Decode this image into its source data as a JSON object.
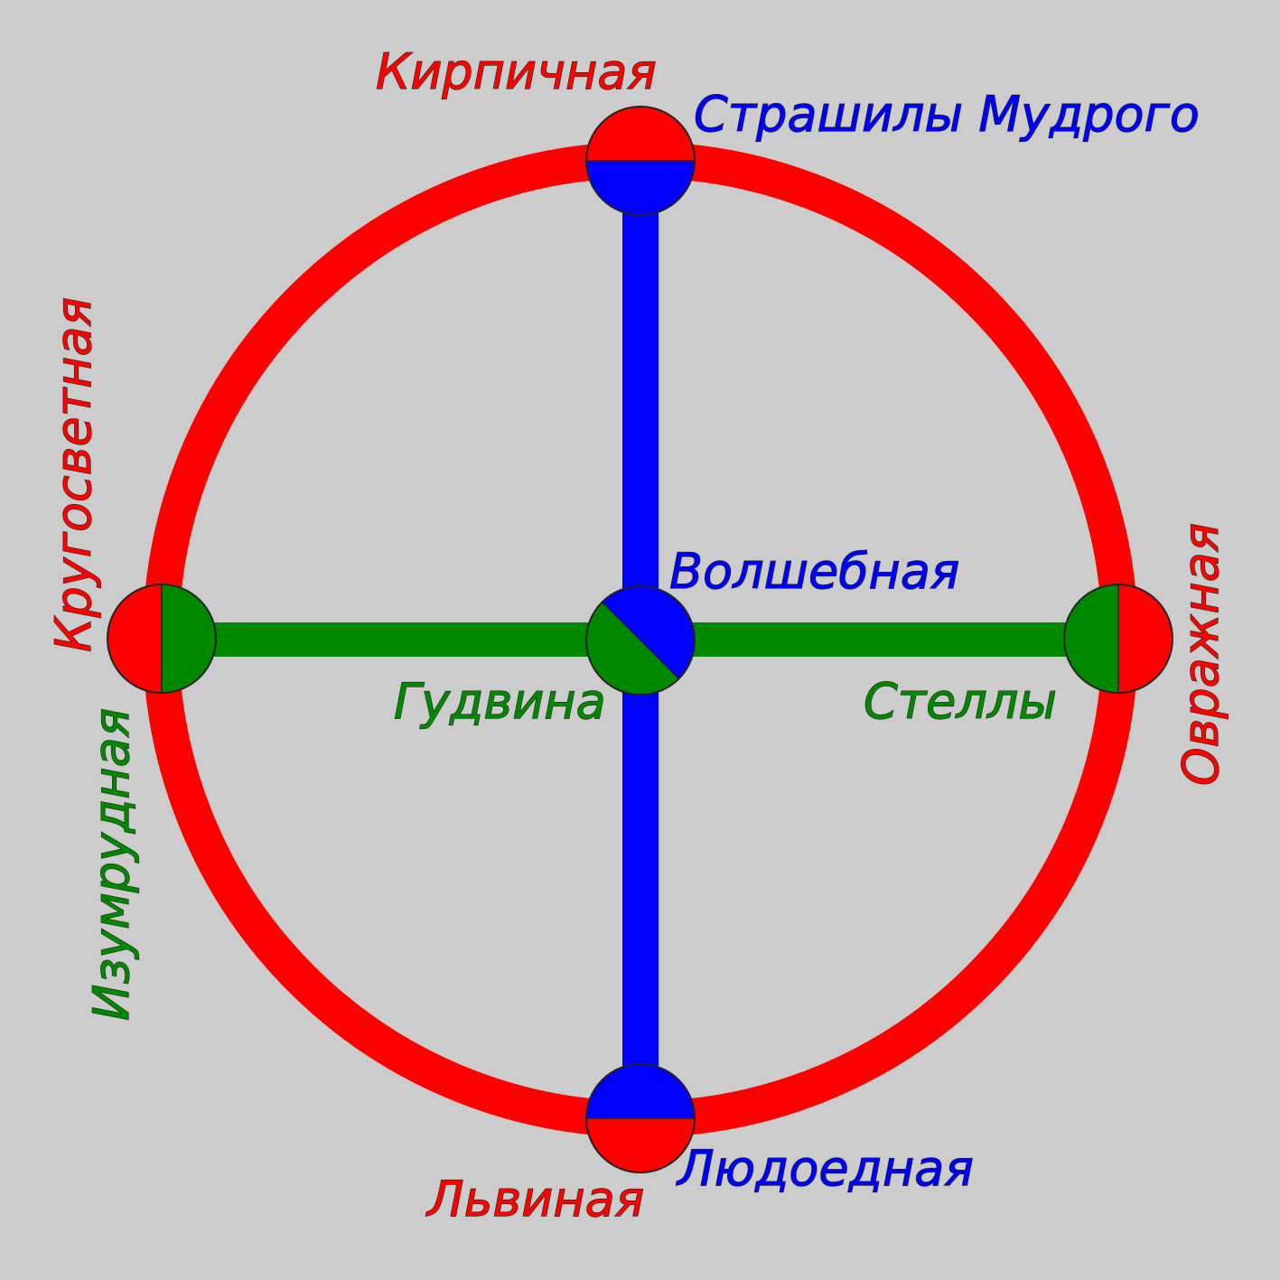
{
  "colors": {
    "background": "#cccccc",
    "red_line": "#ff0000",
    "blue_line": "#0000ff",
    "green_line": "#008800",
    "station_outline": "#222222"
  },
  "stations": {
    "top_red": "Кирпичная",
    "top_blue": "Страшилы Мудрого",
    "left_red": "Кругосветная",
    "left_green": "Изумрудная",
    "right_red": "Овражная",
    "right_green": "Стеллы",
    "center_blue": "Волшебная",
    "center_green": "Гудвина",
    "bottom_red": "Львиная",
    "bottom_blue": "Людоедная"
  }
}
